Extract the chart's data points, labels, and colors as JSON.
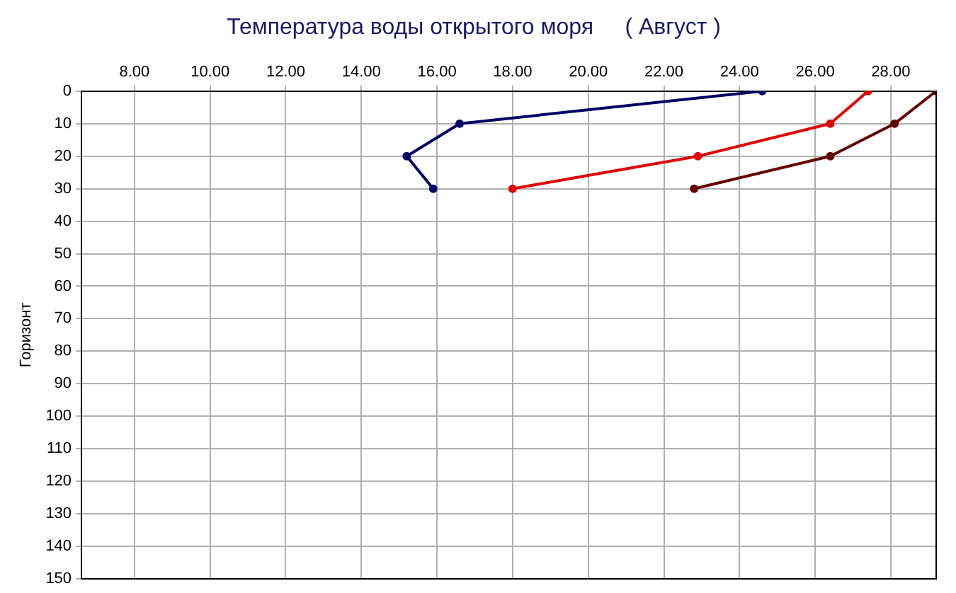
{
  "chart_data": {
    "type": "line",
    "title": "Температура воды открытого моря     ( Август )",
    "ylabel": "Горизонт",
    "xlim": [
      6.6,
      29.2
    ],
    "ylim": [
      150,
      0
    ],
    "xticks": [
      {
        "value": 8,
        "label": "8.00"
      },
      {
        "value": 10,
        "label": "10.00"
      },
      {
        "value": 12,
        "label": "12.00"
      },
      {
        "value": 14,
        "label": "14.00"
      },
      {
        "value": 16,
        "label": "16.00"
      },
      {
        "value": 18,
        "label": "18.00"
      },
      {
        "value": 20,
        "label": "20.00"
      },
      {
        "value": 22,
        "label": "22.00"
      },
      {
        "value": 24,
        "label": "24.00"
      },
      {
        "value": 26,
        "label": "26.00"
      },
      {
        "value": 28,
        "label": "28.00"
      }
    ],
    "yticks": [
      0,
      10,
      20,
      30,
      40,
      50,
      60,
      70,
      80,
      90,
      100,
      110,
      120,
      130,
      140,
      150
    ],
    "grid": true,
    "legend": false,
    "marker": "circle",
    "line_style": "solid",
    "series": [
      {
        "color": "#000066",
        "x": [
          24.6,
          16.6,
          15.2,
          15.9
        ],
        "values": [
          0,
          10,
          20,
          30
        ]
      },
      {
        "color": "#e00000",
        "x": [
          27.4,
          26.4,
          22.9,
          18.0
        ],
        "values": [
          0,
          10,
          20,
          30
        ]
      },
      {
        "color": "#660000",
        "x": [
          29.2,
          28.1,
          26.4,
          22.8
        ],
        "values": [
          0,
          10,
          20,
          30
        ]
      }
    ]
  }
}
